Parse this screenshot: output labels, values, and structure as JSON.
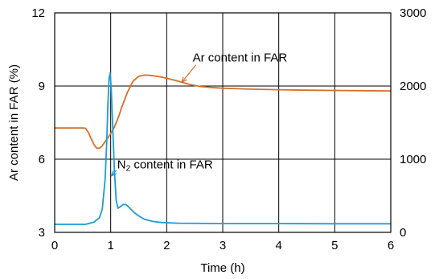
{
  "chart_data": {
    "type": "line",
    "xlabel": "Time (h)",
    "ylabel": "Ar content in FAR (%)",
    "xlim": [
      0,
      6
    ],
    "ylim": [
      3,
      12
    ],
    "y2lim": [
      0,
      3000
    ],
    "x_ticks": [
      "0",
      "1",
      "2",
      "3",
      "4",
      "5",
      "6"
    ],
    "y_ticks": [
      "3",
      "6",
      "9",
      "12"
    ],
    "y2_ticks": [
      "0",
      "1000",
      "2000",
      "3000"
    ],
    "grid": true,
    "series": [
      {
        "name": "Ar content in FAR",
        "axis": "left",
        "color": "#d4702a",
        "points": [
          [
            0,
            7.28
          ],
          [
            0.5,
            7.28
          ],
          [
            0.55,
            7.27
          ],
          [
            0.6,
            7.1
          ],
          [
            0.65,
            6.85
          ],
          [
            0.7,
            6.6
          ],
          [
            0.75,
            6.45
          ],
          [
            0.8,
            6.45
          ],
          [
            0.85,
            6.55
          ],
          [
            0.9,
            6.72
          ],
          [
            0.95,
            6.88
          ],
          [
            1.0,
            7.05
          ],
          [
            1.05,
            7.25
          ],
          [
            1.1,
            7.5
          ],
          [
            1.15,
            7.8
          ],
          [
            1.2,
            8.15
          ],
          [
            1.3,
            8.75
          ],
          [
            1.4,
            9.2
          ],
          [
            1.5,
            9.4
          ],
          [
            1.6,
            9.45
          ],
          [
            1.7,
            9.44
          ],
          [
            1.8,
            9.41
          ],
          [
            1.9,
            9.37
          ],
          [
            2.0,
            9.32
          ],
          [
            2.2,
            9.2
          ],
          [
            2.4,
            9.07
          ],
          [
            2.6,
            8.98
          ],
          [
            2.8,
            8.94
          ],
          [
            3.0,
            8.91
          ],
          [
            3.5,
            8.87
          ],
          [
            4.0,
            8.85
          ],
          [
            4.5,
            8.83
          ],
          [
            5.0,
            8.82
          ],
          [
            5.5,
            8.81
          ],
          [
            6.0,
            8.8
          ]
        ]
      },
      {
        "name": "N2 content in FAR",
        "axis": "right",
        "color": "#1e9bd7",
        "points": [
          [
            0,
            110
          ],
          [
            0.55,
            110
          ],
          [
            0.6,
            120
          ],
          [
            0.7,
            140
          ],
          [
            0.8,
            200
          ],
          [
            0.85,
            320
          ],
          [
            0.9,
            720
          ],
          [
            0.93,
            1250
          ],
          [
            0.95,
            1750
          ],
          [
            0.97,
            2100
          ],
          [
            0.99,
            2180
          ],
          [
            1.01,
            1950
          ],
          [
            1.04,
            1350
          ],
          [
            1.07,
            800
          ],
          [
            1.1,
            430
          ],
          [
            1.13,
            330
          ],
          [
            1.17,
            350
          ],
          [
            1.22,
            380
          ],
          [
            1.27,
            380
          ],
          [
            1.33,
            340
          ],
          [
            1.42,
            270
          ],
          [
            1.5,
            225
          ],
          [
            1.6,
            180
          ],
          [
            1.75,
            150
          ],
          [
            1.9,
            135
          ],
          [
            2.2,
            125
          ],
          [
            3.0,
            120
          ],
          [
            4.0,
            120
          ],
          [
            5.0,
            118
          ],
          [
            6.0,
            118
          ]
        ]
      }
    ],
    "annotations": [
      {
        "text": "Ar content in FAR",
        "series": 0,
        "label_x": 2.55,
        "label_y": 10.0,
        "arrow_x": 2.27,
        "arrow_y": 9.15
      },
      {
        "text_main": "N",
        "text_sub": "2",
        "text_rest": " content in FAR",
        "series": 1,
        "label_x": 1.03,
        "label_y_right": 970,
        "arrow_x": 1.01,
        "arrow_y_right": 770
      }
    ]
  }
}
